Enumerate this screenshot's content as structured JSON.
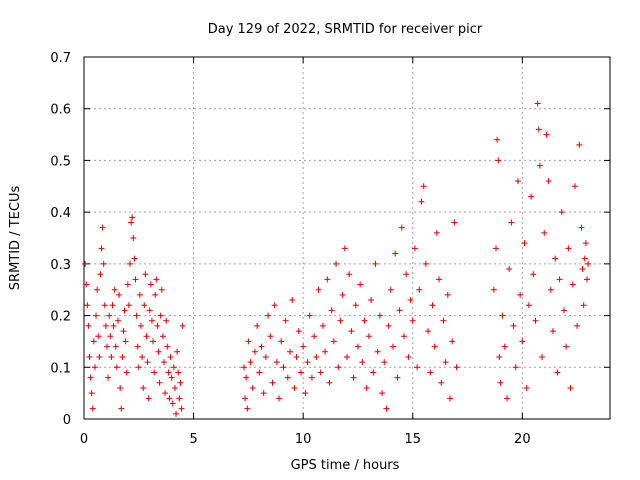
{
  "chart_data": {
    "type": "scatter",
    "title": "Day 129 of 2022, SRMTID for receiver picr",
    "xlabel": "GPS time / hours",
    "ylabel": "SRMTID / TECUs",
    "xlim": [
      0,
      24
    ],
    "ylim": [
      0,
      0.7
    ],
    "xticks": [
      0,
      5,
      10,
      15,
      20
    ],
    "yticks": [
      0,
      0.1,
      0.2,
      0.3,
      0.4,
      0.5,
      0.6,
      0.7
    ],
    "xtick_labels": [
      "0",
      "5",
      "10",
      "15",
      "20"
    ],
    "ytick_labels": [
      "0",
      "0.1",
      "0.2",
      "0.3",
      "0.4",
      "0.5",
      "0.6",
      "0.7"
    ],
    "grid": true,
    "marker": "+",
    "color": "#e00000",
    "series": [
      {
        "name": "SRMTID",
        "points": [
          [
            0.05,
            0.3
          ],
          [
            0.1,
            0.26
          ],
          [
            0.15,
            0.22
          ],
          [
            0.2,
            0.18
          ],
          [
            0.25,
            0.12
          ],
          [
            0.3,
            0.08
          ],
          [
            0.35,
            0.05
          ],
          [
            0.4,
            0.02
          ],
          [
            0.45,
            0.15
          ],
          [
            0.5,
            0.1
          ],
          [
            0.55,
            0.2
          ],
          [
            0.6,
            0.25
          ],
          [
            0.65,
            0.16
          ],
          [
            0.7,
            0.12
          ],
          [
            0.75,
            0.28
          ],
          [
            0.8,
            0.33
          ],
          [
            0.85,
            0.37
          ],
          [
            0.9,
            0.3
          ],
          [
            0.95,
            0.22
          ],
          [
            1.0,
            0.18
          ],
          [
            1.05,
            0.14
          ],
          [
            1.1,
            0.08
          ],
          [
            1.15,
            0.2
          ],
          [
            1.2,
            0.16
          ],
          [
            1.25,
            0.12
          ],
          [
            1.3,
            0.22
          ],
          [
            1.35,
            0.18
          ],
          [
            1.4,
            0.25
          ],
          [
            1.45,
            0.14
          ],
          [
            1.5,
            0.1
          ],
          [
            1.55,
            0.19
          ],
          [
            1.6,
            0.24
          ],
          [
            1.65,
            0.06
          ],
          [
            1.7,
            0.02
          ],
          [
            1.75,
            0.12
          ],
          [
            1.8,
            0.17
          ],
          [
            1.85,
            0.21
          ],
          [
            1.9,
            0.15
          ],
          [
            1.95,
            0.09
          ],
          [
            2.0,
            0.26
          ],
          [
            2.05,
            0.22
          ],
          [
            2.1,
            0.3
          ],
          [
            2.15,
            0.38
          ],
          [
            2.2,
            0.39
          ],
          [
            2.25,
            0.35
          ],
          [
            2.3,
            0.31
          ],
          [
            2.35,
            0.27
          ],
          [
            2.4,
            0.2
          ],
          [
            2.45,
            0.14
          ],
          [
            2.5,
            0.1
          ],
          [
            2.55,
            0.24
          ],
          [
            2.6,
            0.18
          ],
          [
            2.65,
            0.12
          ],
          [
            2.7,
            0.06
          ],
          [
            2.75,
            0.22
          ],
          [
            2.8,
            0.28
          ],
          [
            2.85,
            0.16
          ],
          [
            2.9,
            0.11
          ],
          [
            2.95,
            0.04
          ],
          [
            3.0,
            0.21
          ],
          [
            3.05,
            0.26
          ],
          [
            3.1,
            0.19
          ],
          [
            3.15,
            0.15
          ],
          [
            3.2,
            0.09
          ],
          [
            3.25,
            0.24
          ],
          [
            3.3,
            0.27
          ],
          [
            3.35,
            0.18
          ],
          [
            3.4,
            0.13
          ],
          [
            3.45,
            0.07
          ],
          [
            3.5,
            0.2
          ],
          [
            3.55,
            0.25
          ],
          [
            3.6,
            0.16
          ],
          [
            3.65,
            0.11
          ],
          [
            3.7,
            0.05
          ],
          [
            3.75,
            0.19
          ],
          [
            3.8,
            0.14
          ],
          [
            3.85,
            0.09
          ],
          [
            3.9,
            0.04
          ],
          [
            3.95,
            0.12
          ],
          [
            4.0,
            0.08
          ],
          [
            4.05,
            0.03
          ],
          [
            4.1,
            0.1
          ],
          [
            4.15,
            0.06
          ],
          [
            4.2,
            0.01
          ],
          [
            4.25,
            0.13
          ],
          [
            4.3,
            0.09
          ],
          [
            4.35,
            0.04
          ],
          [
            4.4,
            0.07
          ],
          [
            4.45,
            0.02
          ],
          [
            4.5,
            0.18
          ],
          [
            7.3,
            0.1
          ],
          [
            7.35,
            0.04
          ],
          [
            7.4,
            0.08
          ],
          [
            7.45,
            0.02
          ],
          [
            7.5,
            0.15
          ],
          [
            7.6,
            0.11
          ],
          [
            7.7,
            0.06
          ],
          [
            7.8,
            0.13
          ],
          [
            7.9,
            0.18
          ],
          [
            8.0,
            0.09
          ],
          [
            8.1,
            0.14
          ],
          [
            8.2,
            0.05
          ],
          [
            8.3,
            0.12
          ],
          [
            8.4,
            0.2
          ],
          [
            8.5,
            0.16
          ],
          [
            8.6,
            0.07
          ],
          [
            8.7,
            0.22
          ],
          [
            8.8,
            0.11
          ],
          [
            8.9,
            0.04
          ],
          [
            9.0,
            0.15
          ],
          [
            9.1,
            0.1
          ],
          [
            9.2,
            0.19
          ],
          [
            9.3,
            0.08
          ],
          [
            9.4,
            0.13
          ],
          [
            9.5,
            0.23
          ],
          [
            9.6,
            0.06
          ],
          [
            9.7,
            0.12
          ],
          [
            9.8,
            0.17
          ],
          [
            9.9,
            0.09
          ],
          [
            10.0,
            0.14
          ],
          [
            10.1,
            0.05
          ],
          [
            10.2,
            0.11
          ],
          [
            10.3,
            0.2
          ],
          [
            10.4,
            0.08
          ],
          [
            10.5,
            0.16
          ],
          [
            10.6,
            0.12
          ],
          [
            10.7,
            0.25
          ],
          [
            10.8,
            0.09
          ],
          [
            10.9,
            0.18
          ],
          [
            11.0,
            0.13
          ],
          [
            11.1,
            0.27
          ],
          [
            11.2,
            0.07
          ],
          [
            11.3,
            0.21
          ],
          [
            11.4,
            0.15
          ],
          [
            11.5,
            0.3
          ],
          [
            11.6,
            0.1
          ],
          [
            11.7,
            0.19
          ],
          [
            11.8,
            0.24
          ],
          [
            11.9,
            0.33
          ],
          [
            12.0,
            0.12
          ],
          [
            12.1,
            0.28
          ],
          [
            12.2,
            0.17
          ],
          [
            12.3,
            0.08
          ],
          [
            12.4,
            0.22
          ],
          [
            12.5,
            0.14
          ],
          [
            12.6,
            0.26
          ],
          [
            12.7,
            0.11
          ],
          [
            12.8,
            0.19
          ],
          [
            12.9,
            0.06
          ],
          [
            13.0,
            0.16
          ],
          [
            13.1,
            0.23
          ],
          [
            13.2,
            0.09
          ],
          [
            13.3,
            0.3
          ],
          [
            13.4,
            0.13
          ],
          [
            13.5,
            0.2
          ],
          [
            13.6,
            0.05
          ],
          [
            13.7,
            0.11
          ],
          [
            13.8,
            0.02
          ],
          [
            13.9,
            0.18
          ],
          [
            14.0,
            0.25
          ],
          [
            14.1,
            0.14
          ],
          [
            14.2,
            0.32
          ],
          [
            14.3,
            0.08
          ],
          [
            14.4,
            0.21
          ],
          [
            14.5,
            0.37
          ],
          [
            14.6,
            0.16
          ],
          [
            14.7,
            0.28
          ],
          [
            14.8,
            0.12
          ],
          [
            14.9,
            0.23
          ],
          [
            15.0,
            0.19
          ],
          [
            15.1,
            0.33
          ],
          [
            15.2,
            0.1
          ],
          [
            15.3,
            0.25
          ],
          [
            15.4,
            0.42
          ],
          [
            15.5,
            0.45
          ],
          [
            15.6,
            0.3
          ],
          [
            15.7,
            0.17
          ],
          [
            15.8,
            0.09
          ],
          [
            15.9,
            0.22
          ],
          [
            16.0,
            0.14
          ],
          [
            16.1,
            0.36
          ],
          [
            16.2,
            0.27
          ],
          [
            16.3,
            0.07
          ],
          [
            16.4,
            0.19
          ],
          [
            16.5,
            0.11
          ],
          [
            16.6,
            0.24
          ],
          [
            16.7,
            0.04
          ],
          [
            16.8,
            0.15
          ],
          [
            16.9,
            0.38
          ],
          [
            17.0,
            0.1
          ],
          [
            18.7,
            0.25
          ],
          [
            18.8,
            0.33
          ],
          [
            18.85,
            0.54
          ],
          [
            18.9,
            0.5
          ],
          [
            18.95,
            0.12
          ],
          [
            19.0,
            0.07
          ],
          [
            19.1,
            0.2
          ],
          [
            19.2,
            0.14
          ],
          [
            19.3,
            0.04
          ],
          [
            19.4,
            0.29
          ],
          [
            19.5,
            0.38
          ],
          [
            19.6,
            0.18
          ],
          [
            19.7,
            0.1
          ],
          [
            19.8,
            0.46
          ],
          [
            19.9,
            0.24
          ],
          [
            20.0,
            0.15
          ],
          [
            20.1,
            0.34
          ],
          [
            20.2,
            0.06
          ],
          [
            20.3,
            0.22
          ],
          [
            20.4,
            0.43
          ],
          [
            20.5,
            0.28
          ],
          [
            20.6,
            0.19
          ],
          [
            20.7,
            0.61
          ],
          [
            20.75,
            0.56
          ],
          [
            20.8,
            0.49
          ],
          [
            20.9,
            0.12
          ],
          [
            21.0,
            0.36
          ],
          [
            21.1,
            0.55
          ],
          [
            21.2,
            0.46
          ],
          [
            21.3,
            0.25
          ],
          [
            21.4,
            0.17
          ],
          [
            21.5,
            0.31
          ],
          [
            21.6,
            0.09
          ],
          [
            21.7,
            0.27
          ],
          [
            21.8,
            0.4
          ],
          [
            21.9,
            0.21
          ],
          [
            22.0,
            0.14
          ],
          [
            22.1,
            0.33
          ],
          [
            22.2,
            0.06
          ],
          [
            22.3,
            0.26
          ],
          [
            22.4,
            0.45
          ],
          [
            22.5,
            0.18
          ],
          [
            22.6,
            0.53
          ],
          [
            22.7,
            0.37
          ],
          [
            22.75,
            0.29
          ],
          [
            22.8,
            0.22
          ],
          [
            22.85,
            0.31
          ],
          [
            22.9,
            0.34
          ],
          [
            22.95,
            0.27
          ],
          [
            23.0,
            0.3
          ]
        ]
      }
    ]
  }
}
